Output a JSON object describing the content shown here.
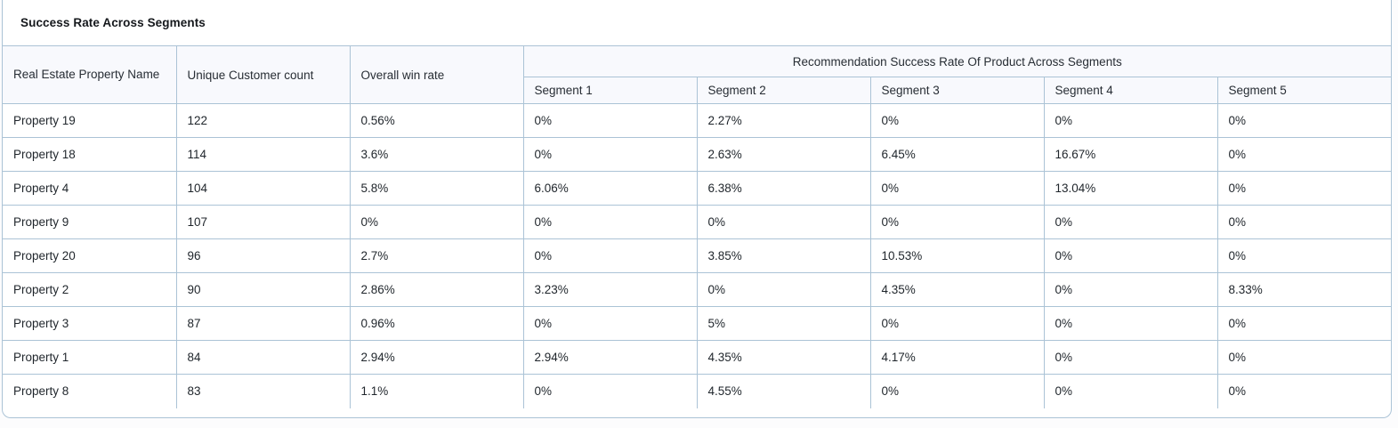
{
  "widget": {
    "title": "Success Rate Across Segments"
  },
  "chart_data": {
    "type": "table",
    "title": "Success Rate Across Segments",
    "header": {
      "property": "Real Estate Property Name",
      "customer_count": "Unique Customer count",
      "win_rate": "Overall win rate",
      "segment_group": "Recommendation Success Rate Of Product Across Segments",
      "segments": [
        "Segment 1",
        "Segment 2",
        "Segment 3",
        "Segment 4",
        "Segment 5"
      ]
    },
    "column_keys": [
      "property-name",
      "unique-customer-count",
      "overall-win-rate",
      "segment-1",
      "segment-2",
      "segment-3",
      "segment-4",
      "segment-5"
    ],
    "rows": [
      {
        "property": "Property 19",
        "unique_customers": 122,
        "overall_win_rate": "0.56%",
        "segment_rates": [
          "0%",
          "2.27%",
          "0%",
          "0%",
          "0%"
        ]
      },
      {
        "property": "Property 18",
        "unique_customers": 114,
        "overall_win_rate": "3.6%",
        "segment_rates": [
          "0%",
          "2.63%",
          "6.45%",
          "16.67%",
          "0%"
        ]
      },
      {
        "property": "Property 4",
        "unique_customers": 104,
        "overall_win_rate": "5.8%",
        "segment_rates": [
          "6.06%",
          "6.38%",
          "0%",
          "13.04%",
          "0%"
        ]
      },
      {
        "property": "Property 9",
        "unique_customers": 107,
        "overall_win_rate": "0%",
        "segment_rates": [
          "0%",
          "0%",
          "0%",
          "0%",
          "0%"
        ]
      },
      {
        "property": "Property 20",
        "unique_customers": 96,
        "overall_win_rate": "2.7%",
        "segment_rates": [
          "0%",
          "3.85%",
          "10.53%",
          "0%",
          "0%"
        ]
      },
      {
        "property": "Property 2",
        "unique_customers": 90,
        "overall_win_rate": "2.86%",
        "segment_rates": [
          "3.23%",
          "0%",
          "4.35%",
          "0%",
          "8.33%"
        ]
      },
      {
        "property": "Property 3",
        "unique_customers": 87,
        "overall_win_rate": "0.96%",
        "segment_rates": [
          "0%",
          "5%",
          "0%",
          "0%",
          "0%"
        ]
      },
      {
        "property": "Property 1",
        "unique_customers": 84,
        "overall_win_rate": "2.94%",
        "segment_rates": [
          "2.94%",
          "4.35%",
          "4.17%",
          "0%",
          "0%"
        ]
      },
      {
        "property": "Property 8",
        "unique_customers": 83,
        "overall_win_rate": "1.1%",
        "segment_rates": [
          "0%",
          "4.55%",
          "0%",
          "0%",
          "0%"
        ]
      }
    ]
  },
  "colors": {
    "table_border": "#abc3d6",
    "header_bg": "#f8f9fd",
    "cell_text": "#1f252b",
    "title_text": "#15181c",
    "card_bg": "#ffffff",
    "page_bg": "#fcfcfd"
  }
}
